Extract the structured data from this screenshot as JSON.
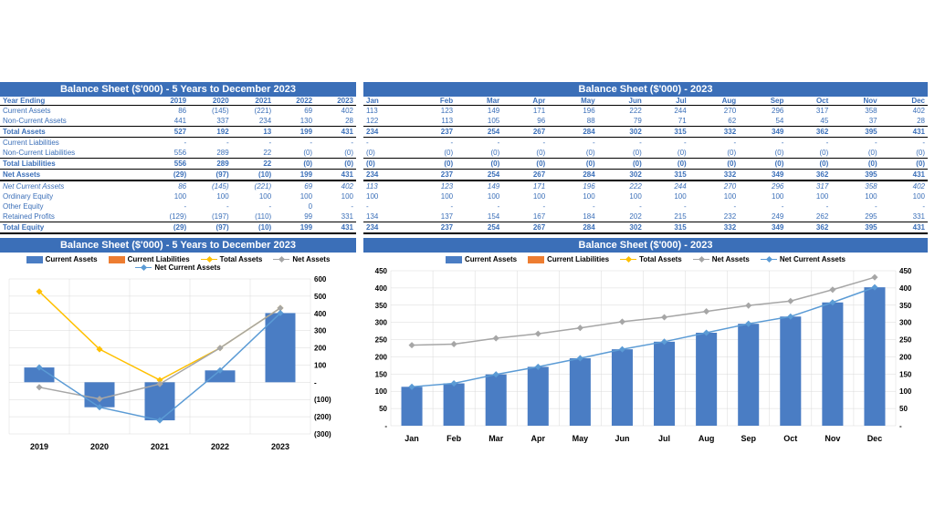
{
  "colors": {
    "header_bg": "#3b6fb8",
    "text_blue": "#3b6fb8",
    "bar_blue": "#4a7dc4",
    "orange": "#ed7d31",
    "yellow": "#ffc000",
    "gray": "#a6a6a6",
    "line_blue": "#5b9bd5",
    "grid": "#d9d9d9"
  },
  "tableLeft": {
    "title": "Balance Sheet ($'000) - 5 Years to December 2023",
    "headerLabel": "Year Ending",
    "years": [
      "2019",
      "2020",
      "2021",
      "2022",
      "2023"
    ],
    "rows": [
      {
        "label": "Current Assets",
        "vals": [
          "86",
          "(145)",
          "(221)",
          "69",
          "402"
        ]
      },
      {
        "label": "Non-Current Assets",
        "vals": [
          "441",
          "337",
          "234",
          "130",
          "28"
        ]
      },
      {
        "label": "Total Assets",
        "vals": [
          "527",
          "192",
          "13",
          "199",
          "431"
        ],
        "bold": true
      },
      {
        "label": "Current Liabilities",
        "vals": [
          "-",
          "-",
          "-",
          "-",
          "-"
        ]
      },
      {
        "label": "Non-Current Liabilities",
        "vals": [
          "556",
          "289",
          "22",
          "(0)",
          "(0)"
        ]
      },
      {
        "label": "Total Liabilities",
        "vals": [
          "556",
          "289",
          "22",
          "(0)",
          "(0)"
        ],
        "bold": true
      },
      {
        "label": "Net Assets",
        "vals": [
          "(29)",
          "(97)",
          "(10)",
          "199",
          "431"
        ],
        "bold": true,
        "double": true
      },
      {
        "label": "Net Current Assets",
        "vals": [
          "86",
          "(145)",
          "(221)",
          "69",
          "402"
        ],
        "italic": true
      },
      {
        "label": "Ordinary Equity",
        "vals": [
          "100",
          "100",
          "100",
          "100",
          "100"
        ]
      },
      {
        "label": "Other Equity",
        "vals": [
          "-",
          "-",
          "-",
          "0",
          "-"
        ]
      },
      {
        "label": "Retained Profits",
        "vals": [
          "(129)",
          "(197)",
          "(110)",
          "99",
          "331"
        ]
      },
      {
        "label": "Total Equity",
        "vals": [
          "(29)",
          "(97)",
          "(10)",
          "199",
          "431"
        ],
        "bold": true,
        "double": true
      }
    ]
  },
  "tableRight": {
    "title": "Balance Sheet ($'000) - 2023",
    "months": [
      "Jan",
      "Feb",
      "Mar",
      "Apr",
      "May",
      "Jun",
      "Jul",
      "Aug",
      "Sep",
      "Oct",
      "Nov",
      "Dec"
    ],
    "rows": [
      {
        "vals": [
          "113",
          "123",
          "149",
          "171",
          "196",
          "222",
          "244",
          "270",
          "296",
          "317",
          "358",
          "402"
        ]
      },
      {
        "vals": [
          "122",
          "113",
          "105",
          "96",
          "88",
          "79",
          "71",
          "62",
          "54",
          "45",
          "37",
          "28"
        ]
      },
      {
        "vals": [
          "234",
          "237",
          "254",
          "267",
          "284",
          "302",
          "315",
          "332",
          "349",
          "362",
          "395",
          "431"
        ],
        "bold": true
      },
      {
        "vals": [
          "-",
          "-",
          "-",
          "-",
          "-",
          "-",
          "-",
          "-",
          "-",
          "-",
          "-",
          "-"
        ]
      },
      {
        "vals": [
          "(0)",
          "(0)",
          "(0)",
          "(0)",
          "(0)",
          "(0)",
          "(0)",
          "(0)",
          "(0)",
          "(0)",
          "(0)",
          "(0)"
        ]
      },
      {
        "vals": [
          "(0)",
          "(0)",
          "(0)",
          "(0)",
          "(0)",
          "(0)",
          "(0)",
          "(0)",
          "(0)",
          "(0)",
          "(0)",
          "(0)"
        ],
        "bold": true
      },
      {
        "vals": [
          "234",
          "237",
          "254",
          "267",
          "284",
          "302",
          "315",
          "332",
          "349",
          "362",
          "395",
          "431"
        ],
        "bold": true,
        "double": true
      },
      {
        "vals": [
          "113",
          "123",
          "149",
          "171",
          "196",
          "222",
          "244",
          "270",
          "296",
          "317",
          "358",
          "402"
        ],
        "italic": true
      },
      {
        "vals": [
          "100",
          "100",
          "100",
          "100",
          "100",
          "100",
          "100",
          "100",
          "100",
          "100",
          "100",
          "100"
        ]
      },
      {
        "vals": [
          "-",
          "-",
          "-",
          "-",
          "-",
          "-",
          "-",
          "-",
          "-",
          "-",
          "-",
          "-"
        ]
      },
      {
        "vals": [
          "134",
          "137",
          "154",
          "167",
          "184",
          "202",
          "215",
          "232",
          "249",
          "262",
          "295",
          "331"
        ]
      },
      {
        "vals": [
          "234",
          "237",
          "254",
          "267",
          "284",
          "302",
          "315",
          "332",
          "349",
          "362",
          "395",
          "431"
        ],
        "bold": true,
        "double": true
      }
    ]
  },
  "chartLeft": {
    "title": "Balance Sheet ($'000) - 5 Years to December 2023",
    "legend": [
      {
        "label": "Current Assets",
        "color": "#4a7dc4",
        "type": "bar"
      },
      {
        "label": "Current Liabilities",
        "color": "#ed7d31",
        "type": "bar"
      },
      {
        "label": "Total Assets",
        "color": "#ffc000",
        "type": "line"
      },
      {
        "label": "Net Assets",
        "color": "#a6a6a6",
        "type": "line"
      },
      {
        "label": "Net Current Assets",
        "color": "#5b9bd5",
        "type": "line"
      }
    ],
    "categories": [
      "2019",
      "2020",
      "2021",
      "2022",
      "2023"
    ],
    "ymin": -300,
    "ymax": 600,
    "ystep": 100,
    "currentAssets": [
      86,
      -145,
      -221,
      69,
      402
    ],
    "totalAssets": [
      527,
      192,
      13,
      199,
      431
    ],
    "netAssets": [
      -29,
      -97,
      -10,
      199,
      431
    ],
    "netCurrentAssets": [
      86,
      -145,
      -221,
      69,
      402
    ]
  },
  "chartRight": {
    "title": "Balance Sheet ($'000) - 2023",
    "legend": [
      {
        "label": "Current Assets",
        "color": "#4a7dc4",
        "type": "bar"
      },
      {
        "label": "Current Liabilities",
        "color": "#ed7d31",
        "type": "bar"
      },
      {
        "label": "Total Assets",
        "color": "#ffc000",
        "type": "line"
      },
      {
        "label": "Net Assets",
        "color": "#a6a6a6",
        "type": "line"
      },
      {
        "label": "Net Current Assets",
        "color": "#5b9bd5",
        "type": "line"
      }
    ],
    "categories": [
      "Jan",
      "Feb",
      "Mar",
      "Apr",
      "May",
      "Jun",
      "Jul",
      "Aug",
      "Sep",
      "Oct",
      "Nov",
      "Dec"
    ],
    "ymin": 0,
    "ymax": 450,
    "ystepLeft": 50,
    "ystepRight": 50,
    "currentAssets": [
      113,
      123,
      149,
      171,
      196,
      222,
      244,
      270,
      296,
      317,
      358,
      402
    ],
    "netAssets": [
      234,
      237,
      254,
      267,
      284,
      302,
      315,
      332,
      349,
      362,
      395,
      431
    ],
    "netCurrentAssets": [
      113,
      123,
      149,
      171,
      196,
      222,
      244,
      270,
      296,
      317,
      358,
      402
    ]
  }
}
